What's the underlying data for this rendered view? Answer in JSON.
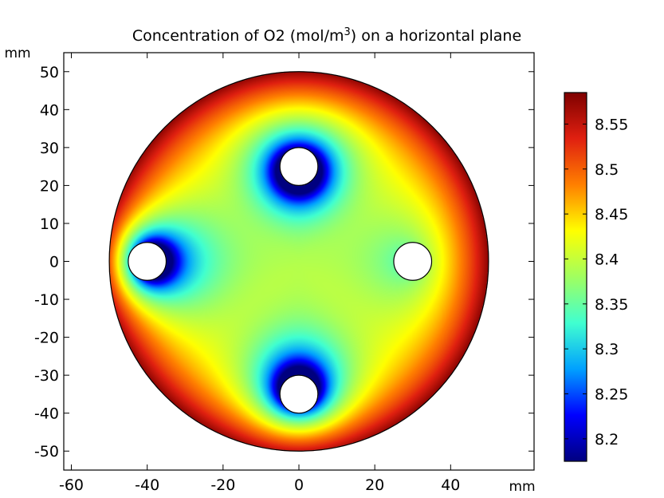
{
  "chart_data": {
    "type": "heatmap",
    "title": {
      "prefix": "Concentration of O2 (mol/m",
      "superscript": "3",
      "suffix": ") on a horizontal plane"
    },
    "x_unit": "mm",
    "y_unit": "mm",
    "xlim": [
      -62,
      62
    ],
    "ylim": [
      -55,
      55
    ],
    "x_ticks": [
      -60,
      -40,
      -20,
      0,
      20,
      40
    ],
    "x_tick_labels": [
      "-60",
      "-40",
      "-20",
      "0",
      "20",
      "40"
    ],
    "y_ticks": [
      50,
      40,
      30,
      20,
      10,
      0,
      -10,
      -20,
      -30,
      -40,
      -50
    ],
    "y_tick_labels": [
      "50",
      "40",
      "30",
      "20",
      "10",
      "0",
      "-10",
      "-20",
      "-30",
      "-40",
      "-50"
    ],
    "domain": {
      "shape": "disk",
      "center": [
        0,
        0
      ],
      "radius": 50
    },
    "holes": [
      {
        "center": [
          0,
          25
        ],
        "radius": 5
      },
      {
        "center": [
          -40,
          0
        ],
        "radius": 5
      },
      {
        "center": [
          30,
          0
        ],
        "radius": 5
      },
      {
        "center": [
          0,
          -35
        ],
        "radius": 5
      }
    ],
    "colorbar": {
      "min": 8.175,
      "max": 8.585,
      "ticks": [
        8.55,
        8.5,
        8.45,
        8.4,
        8.35,
        8.3,
        8.25,
        8.2
      ],
      "tick_labels": [
        "8.55",
        "8.5",
        "8.45",
        "8.4",
        "8.35",
        "8.3",
        "8.25",
        "8.2"
      ],
      "colormap": "rainbow",
      "placement": "right"
    },
    "field_summary": {
      "center_value": 8.4,
      "edge_value": 8.58,
      "hole_boundary_min": 8.18,
      "lowest_holes": [
        [
          0,
          25
        ],
        [
          -40,
          0
        ],
        [
          0,
          -35
        ]
      ],
      "highest_hole": [
        30,
        0
      ]
    },
    "colors": {
      "background": "#ffffff",
      "axes": "#000000",
      "hole_fill": "#ffffff",
      "colormap_stops": [
        "#00007f",
        "#0000ff",
        "#00a0ff",
        "#40ffd0",
        "#a0ff60",
        "#ffff00",
        "#ff8000",
        "#e02010",
        "#7f0000"
      ]
    }
  }
}
